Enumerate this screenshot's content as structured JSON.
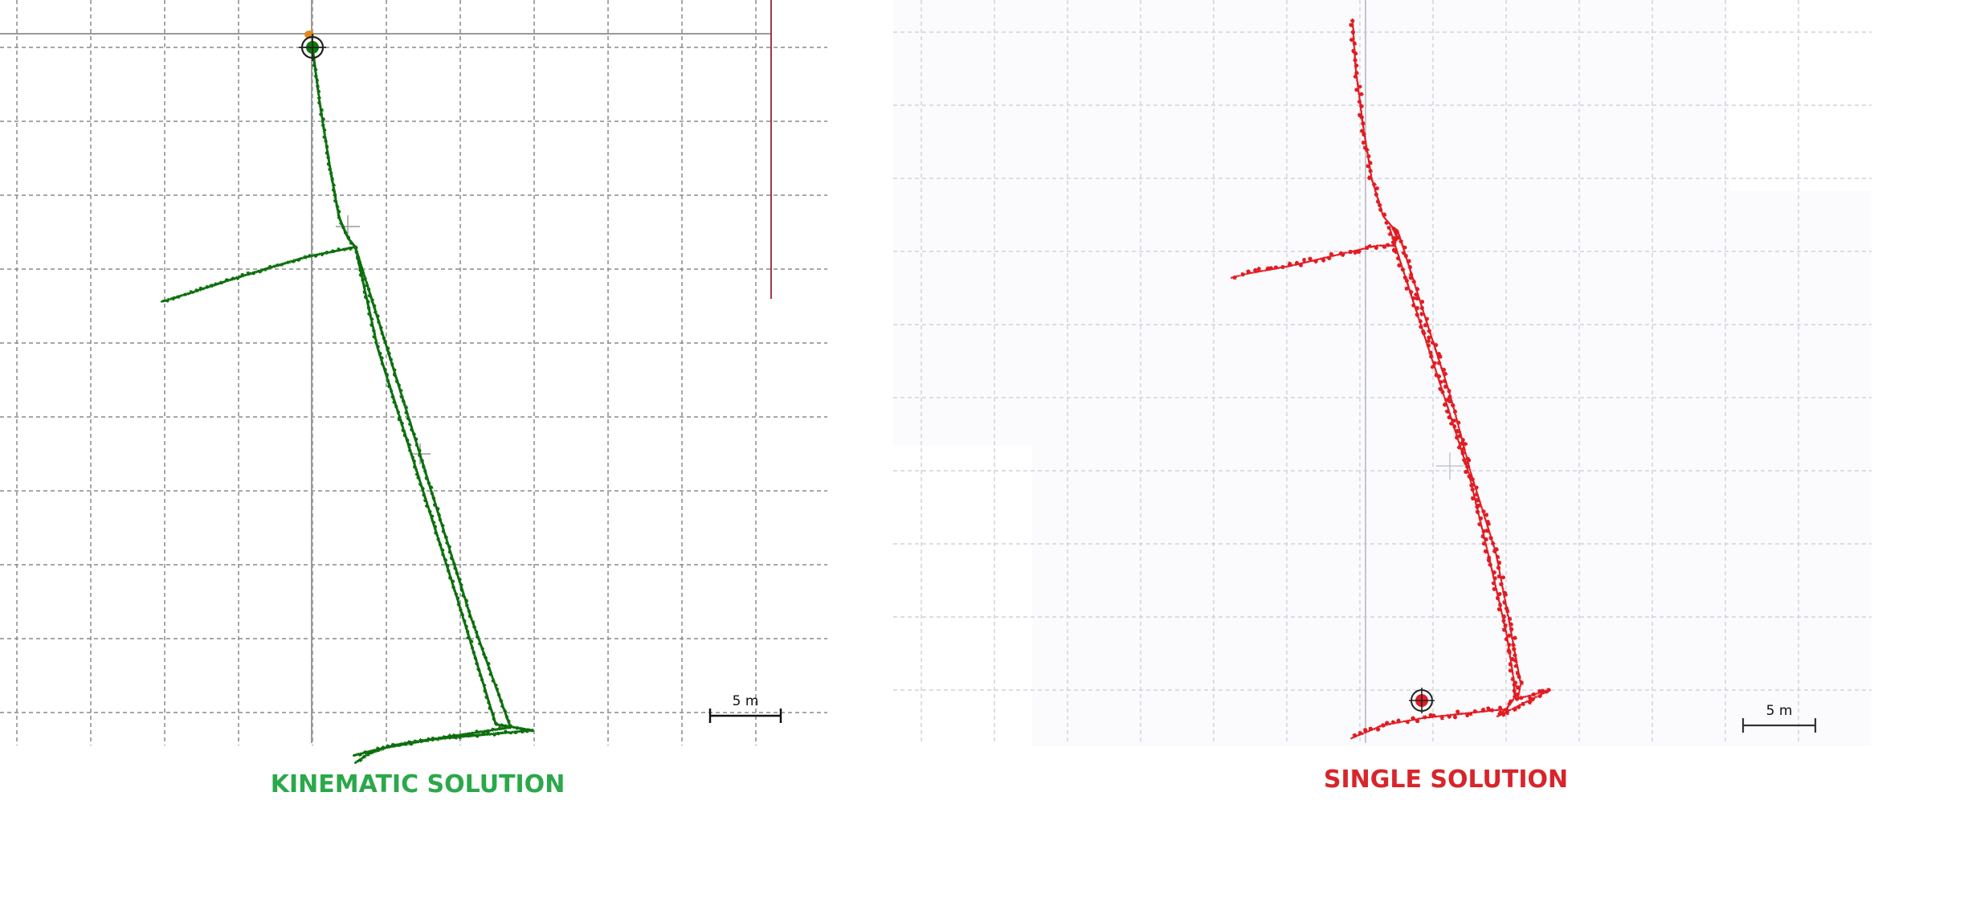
{
  "panels": [
    {
      "caption": "KINEMATIC SOLUTION",
      "caption_color": "#2ba84a",
      "track_color": "#0b6e0b",
      "marker_color": "#0b7a0b",
      "accent_color": "#e08a1e",
      "scale_label": "5 m"
    },
    {
      "caption": "SINGLE SOLUTION",
      "caption_color": "#d7252b",
      "track_color": "#e01b24",
      "marker_color": "#e01b24",
      "scale_label": "5 m"
    }
  ],
  "chart_data": [
    {
      "type": "scatter",
      "title": "KINEMATIC SOLUTION",
      "xlabel": "",
      "ylabel": "",
      "units": "m",
      "grid": true,
      "grid_spacing": 5,
      "xlim": [
        -21,
        35
      ],
      "ylim": [
        -47,
        3
      ],
      "origin_marker": [
        0,
        0
      ],
      "series": [
        {
          "x": [
            0,
            0.5,
            1.2,
            1.8,
            2.4,
            2.9,
            -0.5,
            -3.2,
            -5.8,
            -8.2,
            -10.2,
            2.9,
            5.5,
            8.1,
            10.7,
            13.4,
            5.5,
            3.8,
            2.9,
            2.9,
            4.4,
            7.1,
            9.8,
            12.4,
            14.9,
            11.5,
            8.2,
            4.8,
            2.8
          ],
          "y": [
            0,
            -3.8,
            -8.2,
            -11.5,
            -12.9,
            -13.5,
            -14.2,
            -15.0,
            -15.8,
            -16.6,
            -17.2,
            -13.5,
            -21.8,
            -30.2,
            -38.5,
            -46.0,
            -47.2,
            -47.8,
            -48.4,
            -13.5,
            -20.3,
            -28.8,
            -37.3,
            -45.8,
            -46.2,
            -46.5,
            -46.8,
            -47.4,
            -47.9
          ]
        }
      ]
    },
    {
      "type": "scatter",
      "title": "SINGLE SOLUTION",
      "xlabel": "",
      "ylabel": "",
      "units": "m",
      "grid": true,
      "grid_spacing": 5,
      "xlim": [
        -33,
        34
      ],
      "ylim": [
        -49,
        3
      ],
      "origin_marker": [
        4,
        -46
      ],
      "series": [
        {
          "x": [
            -0.5,
            -0.3,
            0.2,
            0.8,
            1.6,
            2.2,
            2.5,
            2.4,
            1.2,
            -1.8,
            -4.8,
            -7.6,
            -8.8,
            2.0,
            3.8,
            5.6,
            7.4,
            8.8,
            10.0,
            10.5,
            10.6,
            10.0,
            7.2,
            4.4,
            1.6,
            -0.6,
            2.6,
            4.4,
            6.2,
            7.6,
            9.3,
            10.3,
            11.0,
            10.8,
            13.0,
            9.4,
            10.1
          ],
          "y": [
            0.8,
            -2.4,
            -6.3,
            -10.0,
            -12.6,
            -13.3,
            -14.0,
            -14.6,
            -14.6,
            -15.3,
            -16.0,
            -16.5,
            -16.8,
            -13.3,
            -18.9,
            -24.4,
            -30.0,
            -35.8,
            -41.0,
            -44.1,
            -45.5,
            -46.3,
            -46.6,
            -46.9,
            -47.4,
            -48.3,
            -13.6,
            -19.3,
            -24.9,
            -30.2,
            -35.6,
            -40.8,
            -44.6,
            -45.6,
            -45.0,
            -46.8,
            -46.2
          ]
        }
      ]
    }
  ]
}
